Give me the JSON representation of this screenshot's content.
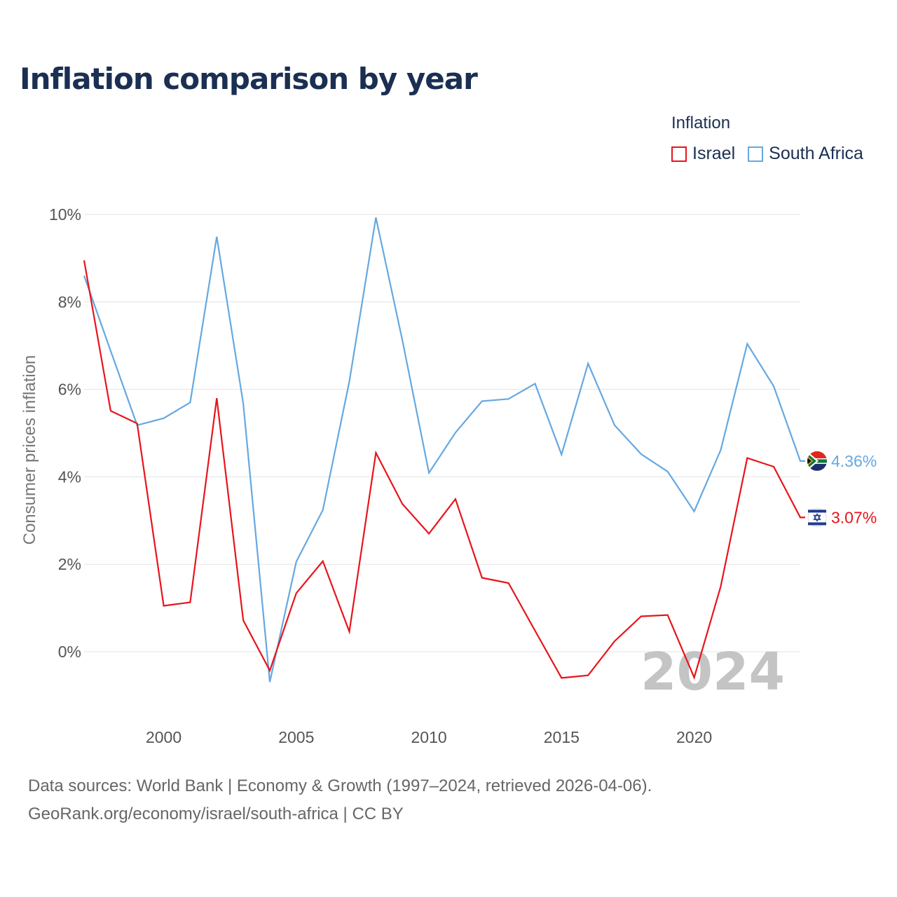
{
  "title": "Inflation comparison by year",
  "legend": {
    "title": "Inflation",
    "items": [
      {
        "name": "Israel",
        "color": "#e8141c"
      },
      {
        "name": "South Africa",
        "color": "#66a8e0"
      }
    ]
  },
  "year_watermark": "2024",
  "footer": {
    "line1": "Data sources: World Bank | Economy & Growth (1997–2024, retrieved 2026-04-06).",
    "line2": "GeoRank.org/economy/israel/south-africa | CC BY"
  },
  "chart_data": {
    "type": "line",
    "ylabel": "Consumer prices inflation",
    "xlabel": "",
    "xlim": [
      1997,
      2024
    ],
    "ylim": [
      -1.5,
      10.3
    ],
    "yticks": [
      0,
      2,
      4,
      6,
      8,
      10
    ],
    "ytick_labels": [
      "0%",
      "2%",
      "4%",
      "6%",
      "8%",
      "10%"
    ],
    "xticks": [
      2000,
      2005,
      2010,
      2015,
      2020
    ],
    "xtick_labels": [
      "2000",
      "2005",
      "2010",
      "2015",
      "2020"
    ],
    "x": [
      1997,
      1998,
      1999,
      2000,
      2001,
      2002,
      2003,
      2004,
      2005,
      2006,
      2007,
      2008,
      2009,
      2010,
      2011,
      2012,
      2013,
      2014,
      2015,
      2016,
      2017,
      2018,
      2019,
      2020,
      2021,
      2022,
      2023,
      2024
    ],
    "series": [
      {
        "name": "Israel",
        "color": "#e8141c",
        "end_label": "3.07%",
        "flag": "israel-flag-icon",
        "values": [
          8.95,
          5.51,
          5.22,
          1.05,
          1.13,
          5.8,
          0.72,
          -0.43,
          1.34,
          2.07,
          0.46,
          4.55,
          3.38,
          2.7,
          3.49,
          1.69,
          1.57,
          0.48,
          -0.6,
          -0.54,
          0.24,
          0.81,
          0.84,
          -0.59,
          1.49,
          4.43,
          4.23,
          3.07
        ]
      },
      {
        "name": "South Africa",
        "color": "#66a8e0",
        "end_label": "4.36%",
        "flag": "south-africa-flag-icon",
        "values": [
          8.6,
          6.88,
          5.18,
          5.34,
          5.7,
          9.49,
          5.68,
          -0.69,
          2.06,
          3.24,
          6.18,
          9.93,
          7.12,
          4.09,
          5.01,
          5.73,
          5.78,
          6.13,
          4.51,
          6.59,
          5.18,
          4.52,
          4.12,
          3.21,
          4.61,
          7.04,
          6.07,
          4.36
        ]
      }
    ]
  }
}
